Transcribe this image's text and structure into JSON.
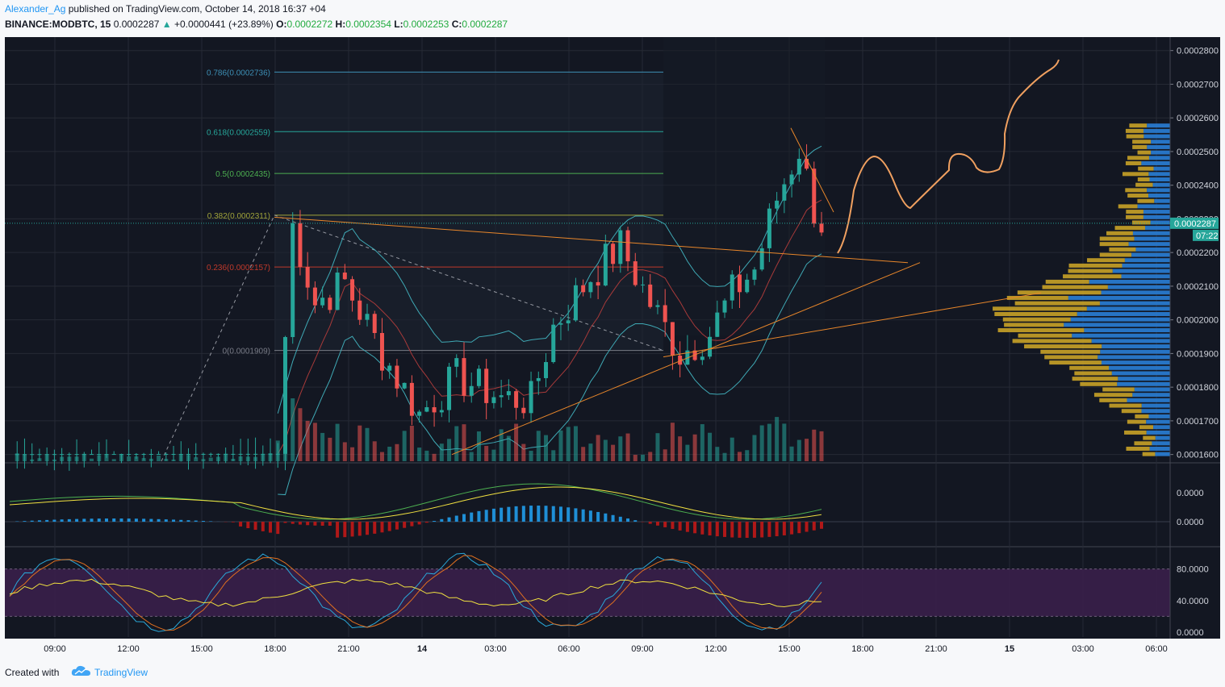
{
  "header": {
    "author": "Alexander_Ag",
    "published": "published on TradingView.com, October 14, 2018 16:37 +04",
    "symbol": "BINANCE:MODBTC, 15",
    "price": "0.0002287",
    "change_arrow": "▲",
    "change": "+0.0000441 (+23.89%)",
    "o_label": "O:",
    "o_value": "0.0002272",
    "h_label": "H:",
    "h_value": "0.0002354",
    "l_label": "L:",
    "l_value": "0.0002253",
    "c_label": "C:",
    "c_value": "0.0002287"
  },
  "footer": {
    "created_with": "Created with",
    "brand": "TradingView"
  },
  "colors": {
    "background": "#131722",
    "bull": "#26a69a",
    "bear": "#ef5350",
    "trendline": "#e8862a",
    "volume_profile_buy": "#2a7ed6",
    "volume_profile_sell": "#c9a227",
    "stoch_band": "#3a1f4a"
  },
  "chart_data": {
    "type": "candlestick",
    "price_axis": {
      "range": [
        0.000158,
        0.000284
      ],
      "ticks": [
        "0.0002800",
        "0.0002700",
        "0.0002600",
        "0.0002500",
        "0.0002400",
        "0.0002300",
        "0.0002200",
        "0.0002100",
        "0.0002000",
        "0.0001900",
        "0.0001800",
        "0.0001700",
        "0.0001600"
      ],
      "last_price_label": "0.0002287",
      "countdown_label": "07:22"
    },
    "time_axis": {
      "ticks": [
        "09:00",
        "12:00",
        "15:00",
        "18:00",
        "21:00",
        "14",
        "03:00",
        "06:00",
        "09:00",
        "12:00",
        "15:00",
        "18:00",
        "21:00",
        "15",
        "03:00",
        "06:00"
      ]
    },
    "fibonacci": [
      {
        "level": "0.786",
        "price": "0.0002736",
        "label": "0.786(0.0002736)",
        "color": "#3d8fb5"
      },
      {
        "level": "0.618",
        "price": "0.0002559",
        "label": "0.618(0.0002559)",
        "color": "#26a69a"
      },
      {
        "level": "0.5",
        "price": "0.0002435",
        "label": "0.5(0.0002435)",
        "color": "#4caf50"
      },
      {
        "level": "0.382",
        "price": "0.0002311",
        "label": "0.382(0.0002311)",
        "color": "#a0a33a"
      },
      {
        "level": "0.236",
        "price": "0.0002157",
        "label": "0.236(0.0002157)",
        "color": "#c0392b"
      },
      {
        "level": "0",
        "price": "0.0001909",
        "label": "0(0.0001909)",
        "color": "#787b86"
      }
    ],
    "macd_axis": {
      "ticks": [
        "0.0000",
        "0.0000"
      ]
    },
    "stoch_axis": {
      "ticks": [
        "80.0000",
        "40.0000",
        "0.0000"
      ],
      "range": [
        0,
        100
      ]
    },
    "volume_profile_note": "horizontal histogram on right side"
  }
}
